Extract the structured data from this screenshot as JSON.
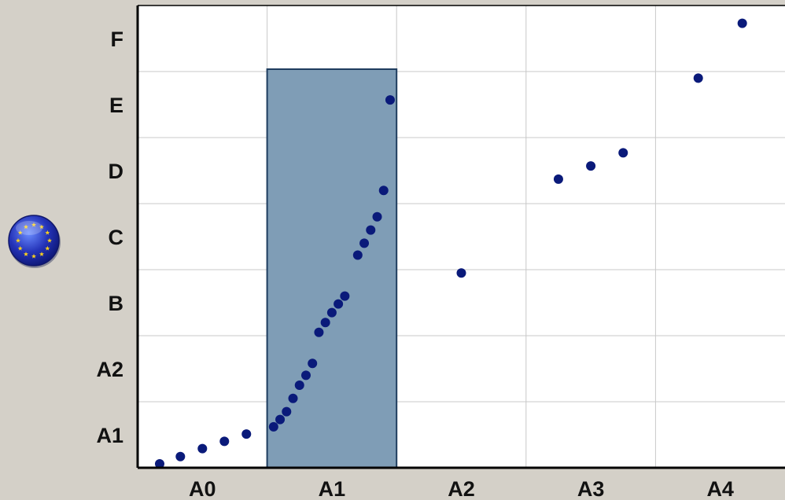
{
  "chart_data": {
    "type": "scatter",
    "categories_x": [
      "A0",
      "A1",
      "A2",
      "A3",
      "A4"
    ],
    "categories_y": [
      "A1",
      "A2",
      "B",
      "C",
      "D",
      "E",
      "F"
    ],
    "highlight_x_category": "A1",
    "grid": true,
    "colors": {
      "background": "#d4d0c8",
      "plot": "#ffffff",
      "grid": "#c8c8c8",
      "point": "#0a1a7a",
      "highlight_fill": "#7f9db6",
      "highlight_stroke": "#1f3d5f"
    },
    "icons": {
      "eu_flag": "eu-flag-icon"
    },
    "points": [
      {
        "x": 0.17,
        "y": 0.06
      },
      {
        "x": 0.33,
        "y": 0.17
      },
      {
        "x": 0.5,
        "y": 0.29
      },
      {
        "x": 0.67,
        "y": 0.4
      },
      {
        "x": 0.84,
        "y": 0.51
      },
      {
        "x": 1.05,
        "y": 0.62
      },
      {
        "x": 1.1,
        "y": 0.73
      },
      {
        "x": 1.15,
        "y": 0.85
      },
      {
        "x": 1.2,
        "y": 1.05
      },
      {
        "x": 1.25,
        "y": 1.25
      },
      {
        "x": 1.3,
        "y": 1.4
      },
      {
        "x": 1.35,
        "y": 1.58
      },
      {
        "x": 1.4,
        "y": 2.05
      },
      {
        "x": 1.45,
        "y": 2.2
      },
      {
        "x": 1.5,
        "y": 2.35
      },
      {
        "x": 1.55,
        "y": 2.48
      },
      {
        "x": 1.6,
        "y": 2.6
      },
      {
        "x": 1.7,
        "y": 3.22
      },
      {
        "x": 1.75,
        "y": 3.4
      },
      {
        "x": 1.8,
        "y": 3.6
      },
      {
        "x": 1.85,
        "y": 3.8
      },
      {
        "x": 1.9,
        "y": 4.2
      },
      {
        "x": 1.95,
        "y": 5.57
      },
      {
        "x": 2.5,
        "y": 2.95
      },
      {
        "x": 3.25,
        "y": 4.37
      },
      {
        "x": 3.5,
        "y": 4.57
      },
      {
        "x": 3.75,
        "y": 4.77
      },
      {
        "x": 4.33,
        "y": 5.9
      },
      {
        "x": 4.67,
        "y": 6.73
      }
    ]
  }
}
